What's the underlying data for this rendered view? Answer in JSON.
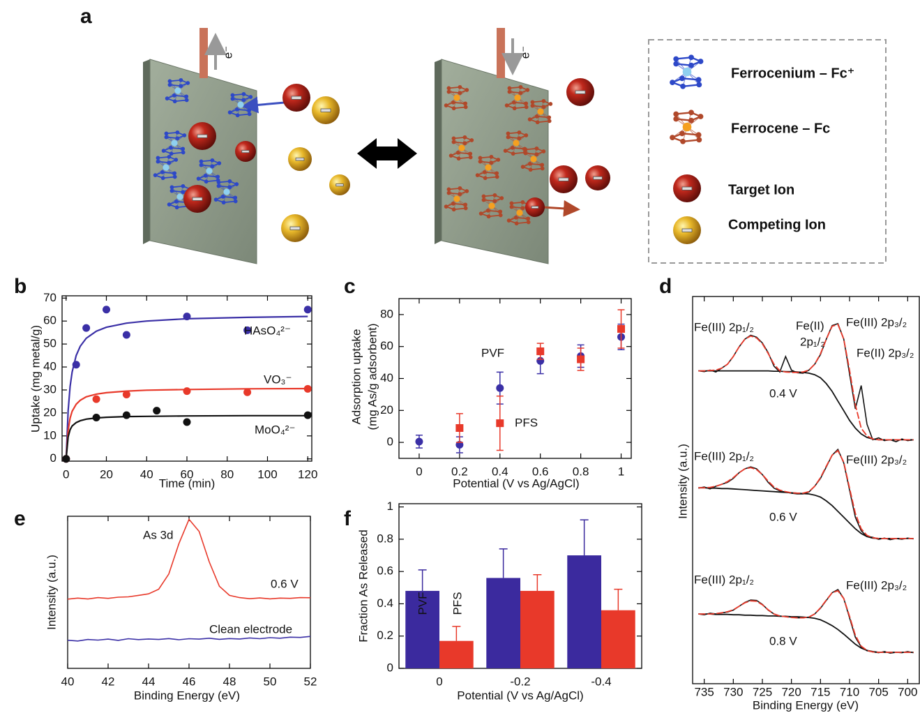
{
  "diagram": {
    "panel": "a",
    "electron_labels": [
      "e⁻",
      "e⁻"
    ],
    "legend": [
      "Ferrocenium – Fc⁺",
      "Ferrocene – Fc",
      "Target Ion",
      "Competing Ion"
    ]
  },
  "chart_data": [
    {
      "panel": "b",
      "type": "scatter",
      "xlabel": "Time (min)",
      "ylabel": [
        "Uptake (mg metal/g)"
      ],
      "xlim": [
        -2,
        122
      ],
      "ylim": [
        -1,
        71
      ],
      "xticks": [
        0,
        20,
        40,
        60,
        80,
        100,
        120
      ],
      "yticks": [
        0,
        10,
        20,
        30,
        40,
        50,
        60,
        70
      ],
      "fit_x": [
        0,
        1,
        2,
        3,
        5,
        7,
        10,
        15,
        20,
        30,
        40,
        60,
        90,
        120
      ],
      "series": [
        {
          "name": "HAsO₄²⁻",
          "color": "#3a2fa6",
          "marker": "circle",
          "x": [
            0,
            5,
            10,
            20,
            30,
            60,
            90,
            120
          ],
          "values": [
            0,
            41,
            57,
            65,
            54,
            62,
            56,
            65
          ],
          "fit": [
            0,
            21,
            31.5,
            37.8,
            45,
            49,
            52.5,
            55.6,
            57.3,
            59.1,
            60,
            61,
            61.6,
            62
          ]
        },
        {
          "name": "VO₃⁻",
          "color": "#e8392a",
          "marker": "circle",
          "x": [
            0,
            15,
            30,
            60,
            90,
            120
          ],
          "values": [
            0,
            26,
            28,
            29.5,
            29,
            30.5
          ],
          "fit": [
            0,
            12.4,
            17.7,
            20.7,
            23.8,
            25.5,
            27,
            28.2,
            28.8,
            29.5,
            29.9,
            30.2,
            30.5,
            30.6
          ]
        },
        {
          "name": "MoO₄²⁻",
          "color": "#111111",
          "marker": "circle",
          "x": [
            0,
            15,
            30,
            45,
            60,
            120
          ],
          "values": [
            0,
            18,
            19,
            21,
            16,
            19
          ],
          "fit": [
            0,
            9.5,
            12.7,
            14.3,
            15.8,
            16.6,
            17.3,
            17.8,
            18.1,
            18.4,
            18.5,
            18.7,
            18.8,
            18.8
          ]
        }
      ]
    },
    {
      "panel": "c",
      "type": "scatter",
      "xlabel": "Potential (V vs Ag/AgCl)",
      "ylabel": [
        "Adsorption uptake",
        "(mg As/g adsorbent)"
      ],
      "xlim": [
        -0.1,
        1.05
      ],
      "ylim": [
        -10,
        90
      ],
      "xticks": [
        0,
        0.2,
        0.4,
        0.6,
        0.8,
        1
      ],
      "yticks": [
        0,
        20,
        40,
        60,
        80
      ],
      "series": [
        {
          "name": "PVF",
          "color": "#3a2fa6",
          "marker": "circle",
          "x": [
            0,
            0.2,
            0.4,
            0.6,
            0.8,
            1
          ],
          "values": [
            0.5,
            -1.5,
            34,
            51,
            54,
            66
          ],
          "errors": [
            4,
            5,
            10,
            8,
            7,
            8
          ]
        },
        {
          "name": "PFS",
          "color": "#e8392a",
          "marker": "square",
          "x": [
            0.2,
            0.4,
            0.6,
            0.8,
            1
          ],
          "values": [
            9,
            12,
            57,
            52,
            71
          ],
          "errors": [
            9,
            17,
            5,
            7,
            12
          ]
        }
      ]
    },
    {
      "panel": "d",
      "type": "line",
      "xlabel": "Binding Energy (eV)",
      "ylabel": [
        "Intensity (a.u.)"
      ],
      "xlim": [
        737,
        698
      ],
      "ylim": [
        0,
        100
      ],
      "xticks": [
        735,
        730,
        725,
        720,
        715,
        710,
        705,
        700
      ],
      "fit_color": "#e8392a",
      "background_color": "#111111",
      "x": [
        736,
        735,
        734,
        733,
        732,
        731,
        730,
        729,
        728,
        727,
        726,
        725,
        724,
        723,
        722,
        721,
        720,
        719,
        718,
        717,
        716,
        715,
        714,
        713,
        712,
        711,
        710,
        709,
        708,
        707,
        706,
        705,
        704,
        703,
        702,
        701,
        700,
        699
      ],
      "series": [
        {
          "name": "0.4 V",
          "color": "#111111",
          "values": [
            80.8,
            80.6,
            81,
            80.5,
            81.5,
            82.5,
            84.5,
            87,
            89,
            90,
            89.5,
            88,
            85.5,
            82,
            80.5,
            84.5,
            81,
            80.3,
            80.2,
            81,
            82.5,
            85,
            89,
            92.5,
            93,
            89,
            80,
            71,
            77,
            67,
            63,
            63.5,
            62.8,
            63,
            62.5,
            63.2,
            62.8,
            63
          ],
          "fit": [
            80.8,
            80.8,
            80.9,
            81,
            81.5,
            82.5,
            84.5,
            87,
            89,
            89.8,
            89.3,
            87.8,
            85.3,
            82.5,
            80.8,
            80.5,
            80.4,
            80.4,
            80.5,
            81,
            82.5,
            85.2,
            89,
            92.3,
            92.8,
            89,
            81,
            72,
            66,
            64,
            63.2,
            63,
            63,
            63,
            63,
            63,
            63,
            63
          ],
          "background": [
            80.8,
            80.8,
            80.8,
            80.8,
            80.8,
            80.8,
            80.8,
            80.8,
            80.8,
            80.8,
            80.8,
            80.8,
            80.8,
            80.7,
            80.7,
            80.6,
            80.6,
            80.5,
            80.4,
            80.2,
            79.8,
            79,
            77.5,
            75.5,
            73,
            70.5,
            68,
            66,
            64.5,
            63.6,
            63.2,
            63,
            63,
            63,
            63,
            63,
            63,
            63
          ]
        },
        {
          "name": "0.6 V",
          "color": "#111111",
          "values": [
            50.5,
            50.8,
            50.3,
            51,
            51.5,
            52,
            53,
            54.5,
            55.5,
            56,
            55.5,
            54,
            52,
            50.5,
            49.8,
            49.5,
            49.2,
            49,
            49,
            49.5,
            51,
            53,
            56,
            59,
            60.5,
            57,
            50,
            43,
            39.5,
            38,
            37.8,
            37.3,
            37.6,
            37.2,
            37.5,
            37.3,
            37.6,
            37.4
          ],
          "fit": [
            50.6,
            50.6,
            50.7,
            51,
            51.5,
            52.2,
            53.2,
            54.5,
            55.5,
            55.8,
            55.3,
            54,
            52.3,
            50.8,
            50,
            49.6,
            49.3,
            49.2,
            49.2,
            49.6,
            51,
            53.2,
            56.2,
            59,
            60.2,
            57.2,
            50.5,
            44,
            40,
            38.3,
            37.7,
            37.5,
            37.5,
            37.5,
            37.5,
            37.5,
            37.5,
            37.5
          ],
          "background": [
            50.6,
            50.6,
            50.5,
            50.5,
            50.4,
            50.4,
            50.3,
            50.2,
            50.1,
            50,
            49.9,
            49.8,
            49.7,
            49.6,
            49.5,
            49.4,
            49.3,
            49.2,
            49.1,
            49,
            48.7,
            48.2,
            47.2,
            46,
            44.5,
            43,
            41.5,
            40,
            38.8,
            38,
            37.6,
            37.5,
            37.5,
            37.5,
            37.5,
            37.5,
            37.5,
            37.5
          ]
        },
        {
          "name": "0.8 V",
          "color": "#111111",
          "values": [
            18,
            17.8,
            18.2,
            18,
            18.3,
            18.5,
            19,
            20,
            21,
            21.6,
            21.5,
            20.5,
            19,
            18,
            17.5,
            17.3,
            17.2,
            17,
            17,
            17.2,
            18,
            19.5,
            21.5,
            23.5,
            24.3,
            22,
            17,
            12,
            9.5,
            8.5,
            8.2,
            8,
            8.3,
            7.9,
            8.1,
            8,
            8.3,
            8
          ],
          "fit": [
            18,
            18,
            18,
            18.1,
            18.3,
            18.6,
            19.1,
            20,
            20.9,
            21.4,
            21.3,
            20.4,
            19.1,
            18,
            17.5,
            17.3,
            17.1,
            17,
            17,
            17.2,
            18,
            19.6,
            21.6,
            23.5,
            24,
            22,
            17.4,
            12.5,
            9.7,
            8.6,
            8.2,
            8.1,
            8.1,
            8.1,
            8.1,
            8.1,
            8.1,
            8.1
          ],
          "background": [
            18,
            18,
            18,
            17.9,
            17.9,
            17.9,
            17.8,
            17.8,
            17.7,
            17.7,
            17.6,
            17.6,
            17.5,
            17.5,
            17.4,
            17.4,
            17.3,
            17.3,
            17.2,
            17.1,
            16.9,
            16.5,
            15.8,
            15,
            14,
            12.8,
            11.5,
            10.2,
            9.2,
            8.6,
            8.3,
            8.1,
            8.1,
            8.1,
            8.1,
            8.1,
            8.1,
            8.1
          ]
        }
      ],
      "annotations": [
        {
          "text": "Fe(III) 2p₁/₂",
          "color": "#e8392a"
        },
        {
          "text": "Fe(II)",
          "color": "#3a2fa6"
        },
        {
          "text": "2p₁/₂",
          "color": "#3a2fa6"
        },
        {
          "text": "Fe(III) 2p₃/₂",
          "color": "#e8392a"
        },
        {
          "text": "Fe(II) 2p₃/₂",
          "color": "#3a2fa6"
        },
        {
          "text": "Fe(III) 2p₁/₂",
          "color": "#e8392a"
        },
        {
          "text": "Fe(III) 2p₃/₂",
          "color": "#e8392a"
        },
        {
          "text": "Fe(III) 2p₁/₂",
          "color": "#e8392a"
        },
        {
          "text": "Fe(III) 2p₃/₂",
          "color": "#e8392a"
        }
      ]
    },
    {
      "panel": "e",
      "type": "line",
      "xlabel": "Binding Energy (eV)",
      "ylabel": [
        "Intensity (a.u.)"
      ],
      "xlim": [
        40,
        52
      ],
      "ylim": [
        0,
        100
      ],
      "xticks": [
        40,
        42,
        44,
        46,
        48,
        50,
        52
      ],
      "x": [
        40,
        40.5,
        41,
        41.5,
        42,
        42.5,
        43,
        43.5,
        44,
        44.5,
        45,
        45.5,
        46,
        46.5,
        47,
        47.5,
        48,
        48.5,
        49,
        49.5,
        50,
        50.5,
        51,
        51.5,
        52
      ],
      "series": [
        {
          "name": "0.6 V",
          "color": "#e8392a",
          "values": [
            45.5,
            46.2,
            45.6,
            46.5,
            46,
            46.8,
            47,
            48,
            49,
            52,
            62,
            82,
            98,
            90,
            70,
            54,
            48,
            46.5,
            45.8,
            46.3,
            45.7,
            46.2,
            46,
            46.5,
            46.4
          ]
        },
        {
          "name": "Clean electrode",
          "color": "#3a2fa6",
          "values": [
            18.5,
            18,
            19,
            18.6,
            19.2,
            18.4,
            19.5,
            18.9,
            19.3,
            19,
            19.6,
            18.8,
            19.5,
            19.2,
            19.8,
            19.1,
            19.6,
            19.3,
            20,
            19.5,
            20.2,
            19.8,
            20.5,
            20.3,
            21
          ]
        }
      ],
      "annotations": [
        {
          "text": "As 3d",
          "color": "#111111"
        }
      ]
    },
    {
      "panel": "f",
      "type": "bar",
      "xlabel": "Potential (V vs Ag/AgCl)",
      "ylabel": [
        "Fraction As Released"
      ],
      "categories": [
        "0",
        "-0.2",
        "-0.4"
      ],
      "ylim": [
        0,
        1.02
      ],
      "yticks": [
        0,
        0.2,
        0.4,
        0.6,
        0.8,
        1
      ],
      "series": [
        {
          "name": "PVF",
          "color": "#3b2a9e",
          "values": [
            0.48,
            0.56,
            0.7
          ],
          "errors": [
            0.13,
            0.18,
            0.22
          ]
        },
        {
          "name": "PFS",
          "color": "#e8392a",
          "values": [
            0.17,
            0.48,
            0.36
          ],
          "errors": [
            0.09,
            0.1,
            0.13
          ]
        }
      ]
    }
  ]
}
